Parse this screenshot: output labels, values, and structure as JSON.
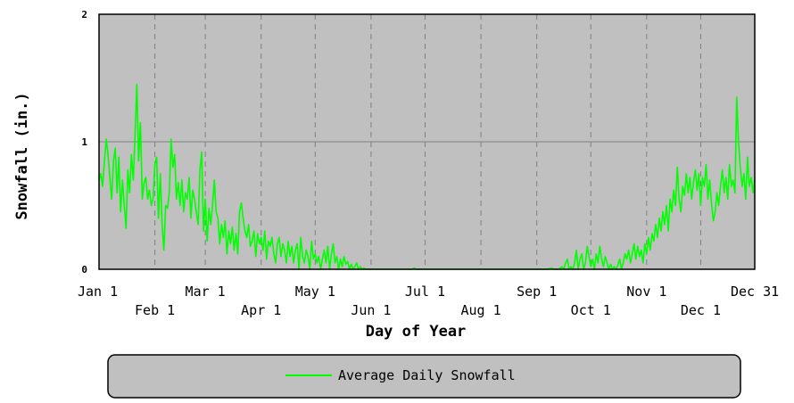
{
  "chart_data": {
    "type": "line",
    "title": "",
    "xlabel": "Day of Year",
    "ylabel": "Snowfall (in.)",
    "xlim": [
      1,
      365
    ],
    "ylim": [
      0,
      2
    ],
    "grid": true,
    "legend_position": "bottom",
    "background_color": "#c0c0c0",
    "line_color": "#00ff00",
    "y_ticks": [
      {
        "label": "0",
        "value": 0
      },
      {
        "label": "1",
        "value": 1
      },
      {
        "label": "2",
        "value": 2
      }
    ],
    "x_ticks": [
      {
        "label": "Jan 1",
        "day": 1,
        "row": 1
      },
      {
        "label": "Feb 1",
        "day": 32,
        "row": 2
      },
      {
        "label": "Mar 1",
        "day": 60,
        "row": 1
      },
      {
        "label": "Apr 1",
        "day": 91,
        "row": 2
      },
      {
        "label": "May 1",
        "day": 121,
        "row": 1
      },
      {
        "label": "Jun 1",
        "day": 152,
        "row": 2
      },
      {
        "label": "Jul 1",
        "day": 182,
        "row": 1
      },
      {
        "label": "Aug 1",
        "day": 213,
        "row": 2
      },
      {
        "label": "Sep 1",
        "day": 244,
        "row": 1
      },
      {
        "label": "Oct 1",
        "day": 274,
        "row": 2
      },
      {
        "label": "Nov 1",
        "day": 305,
        "row": 1
      },
      {
        "label": "Dec 1",
        "day": 335,
        "row": 2
      },
      {
        "label": "Dec 31",
        "day": 365,
        "row": 1
      }
    ],
    "series": [
      {
        "name": "Average Daily Snowfall",
        "points": [
          [
            1,
            0.7
          ],
          [
            2,
            0.75
          ],
          [
            3,
            0.65
          ],
          [
            4,
            0.85
          ],
          [
            5,
            1.02
          ],
          [
            6,
            0.9
          ],
          [
            7,
            0.72
          ],
          [
            8,
            0.55
          ],
          [
            9,
            0.85
          ],
          [
            10,
            0.95
          ],
          [
            11,
            0.6
          ],
          [
            12,
            0.88
          ],
          [
            13,
            0.45
          ],
          [
            14,
            0.7
          ],
          [
            15,
            0.5
          ],
          [
            16,
            0.32
          ],
          [
            17,
            0.78
          ],
          [
            18,
            0.6
          ],
          [
            19,
            0.9
          ],
          [
            20,
            0.7
          ],
          [
            21,
            1.05
          ],
          [
            22,
            1.45
          ],
          [
            23,
            0.85
          ],
          [
            24,
            1.15
          ],
          [
            25,
            0.55
          ],
          [
            26,
            0.68
          ],
          [
            27,
            0.72
          ],
          [
            28,
            0.55
          ],
          [
            29,
            0.62
          ],
          [
            30,
            0.5
          ],
          [
            31,
            0.55
          ],
          [
            32,
            0.82
          ],
          [
            33,
            0.88
          ],
          [
            34,
            0.4
          ],
          [
            35,
            0.75
          ],
          [
            36,
            0.35
          ],
          [
            37,
            0.15
          ],
          [
            38,
            0.5
          ],
          [
            39,
            0.48
          ],
          [
            40,
            0.6
          ],
          [
            41,
            1.02
          ],
          [
            42,
            0.8
          ],
          [
            43,
            0.9
          ],
          [
            44,
            0.55
          ],
          [
            45,
            0.68
          ],
          [
            46,
            0.5
          ],
          [
            47,
            0.7
          ],
          [
            48,
            0.45
          ],
          [
            49,
            0.6
          ],
          [
            50,
            0.55
          ],
          [
            51,
            0.72
          ],
          [
            52,
            0.4
          ],
          [
            53,
            0.62
          ],
          [
            54,
            0.55
          ],
          [
            55,
            0.45
          ],
          [
            56,
            0.35
          ],
          [
            57,
            0.78
          ],
          [
            58,
            0.92
          ],
          [
            59,
            0.3
          ],
          [
            60,
            0.55
          ],
          [
            61,
            0.22
          ],
          [
            62,
            0.48
          ],
          [
            63,
            0.35
          ],
          [
            64,
            0.5
          ],
          [
            65,
            0.7
          ],
          [
            66,
            0.45
          ],
          [
            67,
            0.4
          ],
          [
            68,
            0.2
          ],
          [
            69,
            0.35
          ],
          [
            70,
            0.25
          ],
          [
            71,
            0.38
          ],
          [
            72,
            0.12
          ],
          [
            73,
            0.3
          ],
          [
            74,
            0.2
          ],
          [
            75,
            0.33
          ],
          [
            76,
            0.15
          ],
          [
            77,
            0.28
          ],
          [
            78,
            0.12
          ],
          [
            79,
            0.45
          ],
          [
            80,
            0.52
          ],
          [
            81,
            0.4
          ],
          [
            82,
            0.3
          ],
          [
            83,
            0.25
          ],
          [
            84,
            0.35
          ],
          [
            85,
            0.18
          ],
          [
            86,
            0.22
          ],
          [
            87,
            0.3
          ],
          [
            88,
            0.1
          ],
          [
            89,
            0.28
          ],
          [
            90,
            0.2
          ],
          [
            91,
            0.25
          ],
          [
            92,
            0.15
          ],
          [
            93,
            0.3
          ],
          [
            94,
            0.08
          ],
          [
            95,
            0.22
          ],
          [
            96,
            0.18
          ],
          [
            97,
            0.25
          ],
          [
            98,
            0.12
          ],
          [
            99,
            0.05
          ],
          [
            100,
            0.2
          ],
          [
            101,
            0.25
          ],
          [
            102,
            0.1
          ],
          [
            103,
            0.2
          ],
          [
            104,
            0.15
          ],
          [
            105,
            0.05
          ],
          [
            106,
            0.22
          ],
          [
            107,
            0.1
          ],
          [
            108,
            0.18
          ],
          [
            109,
            0.05
          ],
          [
            110,
            0.15
          ],
          [
            111,
            0.2
          ],
          [
            112,
            0.0
          ],
          [
            113,
            0.25
          ],
          [
            114,
            0.1
          ],
          [
            115,
            0.05
          ],
          [
            116,
            0.15
          ],
          [
            117,
            0.1
          ],
          [
            118,
            0.0
          ],
          [
            119,
            0.22
          ],
          [
            120,
            0.08
          ],
          [
            121,
            0.12
          ],
          [
            122,
            0.05
          ],
          [
            123,
            0.1
          ],
          [
            124,
            0.0
          ],
          [
            125,
            0.08
          ],
          [
            126,
            0.15
          ],
          [
            127,
            0.05
          ],
          [
            128,
            0.18
          ],
          [
            129,
            0.0
          ],
          [
            130,
            0.12
          ],
          [
            131,
            0.2
          ],
          [
            132,
            0.05
          ],
          [
            133,
            0.1
          ],
          [
            134,
            0.0
          ],
          [
            135,
            0.08
          ],
          [
            136,
            0.02
          ],
          [
            137,
            0.1
          ],
          [
            138,
            0.04
          ],
          [
            139,
            0.06
          ],
          [
            140,
            0.0
          ],
          [
            141,
            0.04
          ],
          [
            142,
            0.0
          ],
          [
            143,
            0.02
          ],
          [
            144,
            0.05
          ],
          [
            145,
            0.0
          ],
          [
            146,
            0.02
          ],
          [
            147,
            0.0
          ],
          [
            148,
            0.01
          ],
          [
            149,
            0.0
          ],
          [
            150,
            0.0
          ],
          [
            160,
            0.0
          ],
          [
            175,
            0.0
          ],
          [
            176,
            0.01
          ],
          [
            177,
            0.0
          ],
          [
            200,
            0.0
          ],
          [
            220,
            0.0
          ],
          [
            240,
            0.0
          ],
          [
            250,
            0.0
          ],
          [
            252,
            0.01
          ],
          [
            254,
            0.0
          ],
          [
            256,
            0.0
          ],
          [
            258,
            0.02
          ],
          [
            259,
            0.0
          ],
          [
            260,
            0.05
          ],
          [
            261,
            0.08
          ],
          [
            262,
            0.0
          ],
          [
            263,
            0.02
          ],
          [
            264,
            0.0
          ],
          [
            265,
            0.05
          ],
          [
            266,
            0.15
          ],
          [
            267,
            0.0
          ],
          [
            268,
            0.08
          ],
          [
            269,
            0.12
          ],
          [
            270,
            0.0
          ],
          [
            271,
            0.05
          ],
          [
            272,
            0.18
          ],
          [
            273,
            0.1
          ],
          [
            274,
            0.02
          ],
          [
            275,
            0.08
          ],
          [
            276,
            0.0
          ],
          [
            277,
            0.12
          ],
          [
            278,
            0.05
          ],
          [
            279,
            0.18
          ],
          [
            280,
            0.08
          ],
          [
            281,
            0.02
          ],
          [
            282,
            0.1
          ],
          [
            283,
            0.05
          ],
          [
            284,
            0.0
          ],
          [
            285,
            0.04
          ],
          [
            286,
            0.0
          ],
          [
            287,
            0.02
          ],
          [
            288,
            0.0
          ],
          [
            289,
            0.03
          ],
          [
            290,
            0.08
          ],
          [
            291,
            0.0
          ],
          [
            292,
            0.05
          ],
          [
            293,
            0.12
          ],
          [
            294,
            0.08
          ],
          [
            295,
            0.15
          ],
          [
            296,
            0.05
          ],
          [
            297,
            0.12
          ],
          [
            298,
            0.2
          ],
          [
            299,
            0.08
          ],
          [
            300,
            0.18
          ],
          [
            301,
            0.1
          ],
          [
            302,
            0.15
          ],
          [
            303,
            0.05
          ],
          [
            304,
            0.2
          ],
          [
            305,
            0.12
          ],
          [
            306,
            0.25
          ],
          [
            307,
            0.15
          ],
          [
            308,
            0.28
          ],
          [
            309,
            0.22
          ],
          [
            310,
            0.35
          ],
          [
            311,
            0.25
          ],
          [
            312,
            0.4
          ],
          [
            313,
            0.3
          ],
          [
            314,
            0.45
          ],
          [
            315,
            0.35
          ],
          [
            316,
            0.5
          ],
          [
            317,
            0.3
          ],
          [
            318,
            0.55
          ],
          [
            319,
            0.45
          ],
          [
            320,
            0.62
          ],
          [
            321,
            0.5
          ],
          [
            322,
            0.8
          ],
          [
            323,
            0.55
          ],
          [
            324,
            0.45
          ],
          [
            325,
            0.65
          ],
          [
            326,
            0.58
          ],
          [
            327,
            0.75
          ],
          [
            328,
            0.6
          ],
          [
            329,
            0.72
          ],
          [
            330,
            0.55
          ],
          [
            331,
            0.68
          ],
          [
            332,
            0.78
          ],
          [
            333,
            0.62
          ],
          [
            334,
            0.75
          ],
          [
            335,
            0.5
          ],
          [
            336,
            0.72
          ],
          [
            337,
            0.65
          ],
          [
            338,
            0.82
          ],
          [
            339,
            0.55
          ],
          [
            340,
            0.7
          ],
          [
            341,
            0.52
          ],
          [
            342,
            0.38
          ],
          [
            343,
            0.45
          ],
          [
            344,
            0.6
          ],
          [
            345,
            0.5
          ],
          [
            346,
            0.65
          ],
          [
            347,
            0.78
          ],
          [
            348,
            0.6
          ],
          [
            349,
            0.72
          ],
          [
            350,
            0.55
          ],
          [
            351,
            0.82
          ],
          [
            352,
            0.65
          ],
          [
            353,
            0.7
          ],
          [
            354,
            0.6
          ],
          [
            355,
            1.35
          ],
          [
            356,
            1.0
          ],
          [
            357,
            0.8
          ],
          [
            358,
            0.65
          ],
          [
            359,
            0.75
          ],
          [
            360,
            0.55
          ],
          [
            361,
            0.88
          ],
          [
            362,
            0.65
          ],
          [
            363,
            0.72
          ],
          [
            364,
            0.6
          ],
          [
            365,
            0.7
          ]
        ]
      }
    ]
  }
}
